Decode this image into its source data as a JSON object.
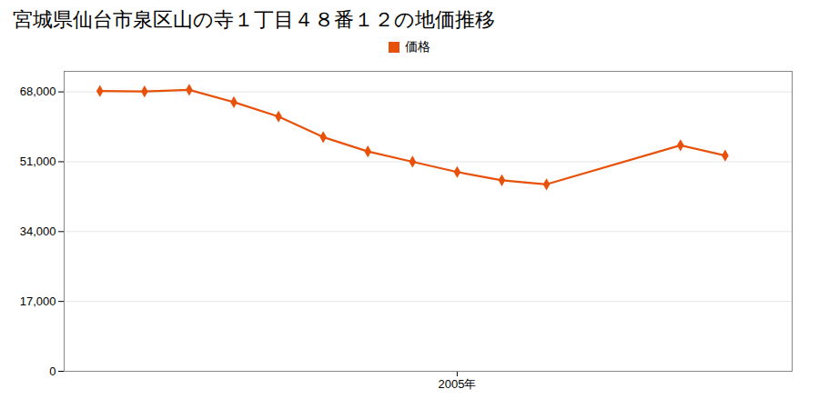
{
  "chart_data": {
    "type": "line",
    "title": "宮城県仙台市泉区山の寺１丁目４８番１２の地価推移",
    "x": [
      1997,
      1998,
      1999,
      2000,
      2001,
      2002,
      2003,
      2004,
      2005,
      2006,
      2007,
      2010,
      2011
    ],
    "series": [
      {
        "name": "価格",
        "color": "#e8510a",
        "marker": "diamond",
        "values": [
          68200,
          68100,
          68500,
          65500,
          62000,
          57000,
          53500,
          51000,
          48500,
          46500,
          45500,
          55000,
          52500
        ]
      }
    ],
    "xlim": [
      1996.2,
      2012.5
    ],
    "xticks": [
      {
        "value": 2005,
        "label": "2005年"
      }
    ],
    "ylim": [
      0,
      73000
    ],
    "yticks": [
      0,
      {
        "value": 17000,
        "label": "17,000"
      },
      {
        "value": 34000,
        "label": "34,000"
      },
      {
        "value": 51000,
        "label": "51,000"
      },
      {
        "value": 68000,
        "label": "68,000"
      }
    ],
    "grid": true,
    "legend": "top"
  }
}
